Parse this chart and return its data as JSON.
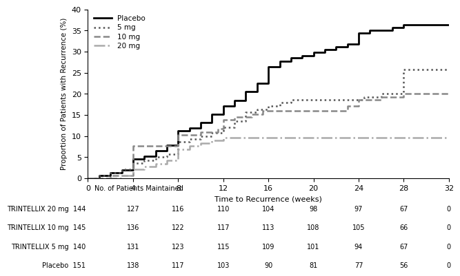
{
  "xlabel": "Time to Recurrence (weeks)",
  "ylabel": "Proportion of Patients with Recurrence (%)",
  "xlim": [
    0,
    32
  ],
  "ylim": [
    0,
    40
  ],
  "xticks": [
    0,
    4,
    8,
    12,
    16,
    20,
    24,
    28,
    32
  ],
  "yticks": [
    0,
    5,
    10,
    15,
    20,
    25,
    30,
    35,
    40
  ],
  "placebo": {
    "x": [
      0,
      0.5,
      1,
      1.5,
      2,
      2.5,
      3,
      3.5,
      4,
      4.5,
      5,
      5.5,
      6,
      6.5,
      7,
      7.5,
      8,
      9,
      9.5,
      10,
      11,
      11.5,
      12,
      12.5,
      13,
      13.5,
      14,
      14.5,
      15,
      15.5,
      16,
      16.5,
      17,
      17.5,
      18,
      18.5,
      19,
      19.5,
      20,
      20.5,
      21,
      21.5,
      22,
      22.5,
      23,
      23.5,
      24,
      24.5,
      25,
      25.5,
      26,
      27,
      28,
      28.5,
      29,
      30,
      32
    ],
    "y": [
      0,
      0,
      0.7,
      0.7,
      1.3,
      1.3,
      2.0,
      2.0,
      4.6,
      4.6,
      5.3,
      5.3,
      6.6,
      6.6,
      7.9,
      7.9,
      11.3,
      11.9,
      11.9,
      13.2,
      15.2,
      15.2,
      17.2,
      17.2,
      18.5,
      18.5,
      20.5,
      20.5,
      22.5,
      22.5,
      26.5,
      26.5,
      27.8,
      27.8,
      28.5,
      28.5,
      29.1,
      29.1,
      29.8,
      29.8,
      30.5,
      30.5,
      31.1,
      31.1,
      31.8,
      31.8,
      34.4,
      34.4,
      35.1,
      35.1,
      35.1,
      35.8,
      36.4,
      36.4,
      36.4,
      36.4,
      36.4
    ],
    "color": "#000000",
    "linestyle": "-",
    "linewidth": 2.0,
    "label": "Placebo"
  },
  "mg5": {
    "x": [
      0,
      1,
      1.5,
      2,
      2.5,
      3,
      3.5,
      4,
      4.5,
      5,
      5.5,
      6,
      6.5,
      7,
      7.5,
      8,
      8.5,
      9,
      9.5,
      10,
      10.5,
      11,
      11.5,
      12,
      12.5,
      13,
      13.5,
      14,
      14.5,
      15,
      16,
      16.5,
      17,
      17.5,
      18,
      18.5,
      19,
      20,
      21,
      22,
      23,
      24,
      24.5,
      25,
      26,
      27,
      27.5,
      28,
      29,
      30,
      31,
      32
    ],
    "y": [
      0,
      0.7,
      0.7,
      1.4,
      1.4,
      2.1,
      2.1,
      3.6,
      3.6,
      4.3,
      4.3,
      5.0,
      5.0,
      5.7,
      5.7,
      8.6,
      8.6,
      9.3,
      9.3,
      10.0,
      10.0,
      10.7,
      10.7,
      12.1,
      12.1,
      13.6,
      13.6,
      15.7,
      15.7,
      16.4,
      17.1,
      17.1,
      17.9,
      17.9,
      18.6,
      18.6,
      18.6,
      18.6,
      18.6,
      18.6,
      18.6,
      18.6,
      19.3,
      19.3,
      20.0,
      20.0,
      20.0,
      25.7,
      25.7,
      25.7,
      25.7,
      25.7
    ],
    "color": "#555555",
    "linestyle": ":",
    "linewidth": 1.8,
    "label": "5 mg"
  },
  "mg10": {
    "x": [
      0,
      1,
      2,
      2.5,
      3,
      3.5,
      4,
      7,
      7.5,
      8,
      9,
      9.5,
      10,
      11,
      11.5,
      12,
      12.5,
      13,
      14,
      14.5,
      15,
      15.5,
      16,
      17,
      18,
      19,
      20,
      21,
      22,
      23,
      23.5,
      24,
      25,
      26,
      27,
      28,
      29,
      30,
      31,
      32
    ],
    "y": [
      0,
      0,
      0.7,
      0.7,
      0.7,
      0.7,
      7.6,
      7.6,
      7.6,
      10.3,
      10.3,
      10.3,
      11.0,
      11.0,
      11.7,
      13.8,
      13.8,
      14.5,
      14.5,
      15.2,
      15.2,
      16.0,
      16.0,
      16.0,
      16.0,
      16.0,
      16.0,
      16.0,
      16.0,
      17.2,
      17.2,
      18.6,
      18.6,
      19.3,
      19.3,
      20.0,
      20.0,
      20.0,
      20.0,
      20.0
    ],
    "color": "#888888",
    "linestyle": "--",
    "linewidth": 1.8,
    "label": "10 mg"
  },
  "mg20": {
    "x": [
      0,
      1,
      2,
      2.5,
      3,
      3.5,
      4,
      4.5,
      5,
      5.5,
      6,
      6.5,
      7,
      7.5,
      8,
      8.5,
      9,
      9.5,
      10,
      10.5,
      11,
      11.5,
      12,
      13,
      14,
      15,
      16,
      17,
      18,
      19,
      20,
      21,
      22,
      23,
      24,
      25,
      26,
      27,
      28,
      29,
      30,
      31,
      32
    ],
    "y": [
      0,
      0,
      0,
      0,
      0.7,
      0.7,
      2.1,
      2.1,
      2.8,
      2.8,
      3.5,
      3.5,
      4.2,
      4.2,
      6.9,
      6.9,
      7.6,
      7.6,
      8.3,
      8.3,
      9.0,
      9.0,
      9.7,
      9.7,
      9.7,
      9.7,
      9.7,
      9.7,
      9.7,
      9.7,
      9.7,
      9.7,
      9.7,
      9.7,
      9.7,
      9.7,
      9.7,
      9.7,
      9.7,
      9.7,
      9.7,
      9.7,
      9.7
    ],
    "color": "#aaaaaa",
    "linestyle": "-.",
    "linewidth": 1.8,
    "label": "20 mg"
  },
  "table_header": "No. of Patients Maintained",
  "table_rows": [
    {
      "label": "TRINTELLIX 20 mg",
      "n": 144,
      "values": [
        127,
        116,
        110,
        104,
        98,
        97,
        67,
        0
      ]
    },
    {
      "label": "TRINTELLIX 10 mg",
      "n": 145,
      "values": [
        136,
        122,
        117,
        113,
        108,
        105,
        66,
        0
      ]
    },
    {
      "label": "TRINTELLIX 5 mg",
      "n": 140,
      "values": [
        131,
        123,
        115,
        109,
        101,
        94,
        67,
        0
      ]
    },
    {
      "label": "Placebo",
      "n": 151,
      "values": [
        138,
        117,
        103,
        90,
        81,
        77,
        56,
        0
      ]
    }
  ],
  "table_col_weeks": [
    0,
    4,
    8,
    12,
    16,
    20,
    24,
    28,
    32
  ]
}
